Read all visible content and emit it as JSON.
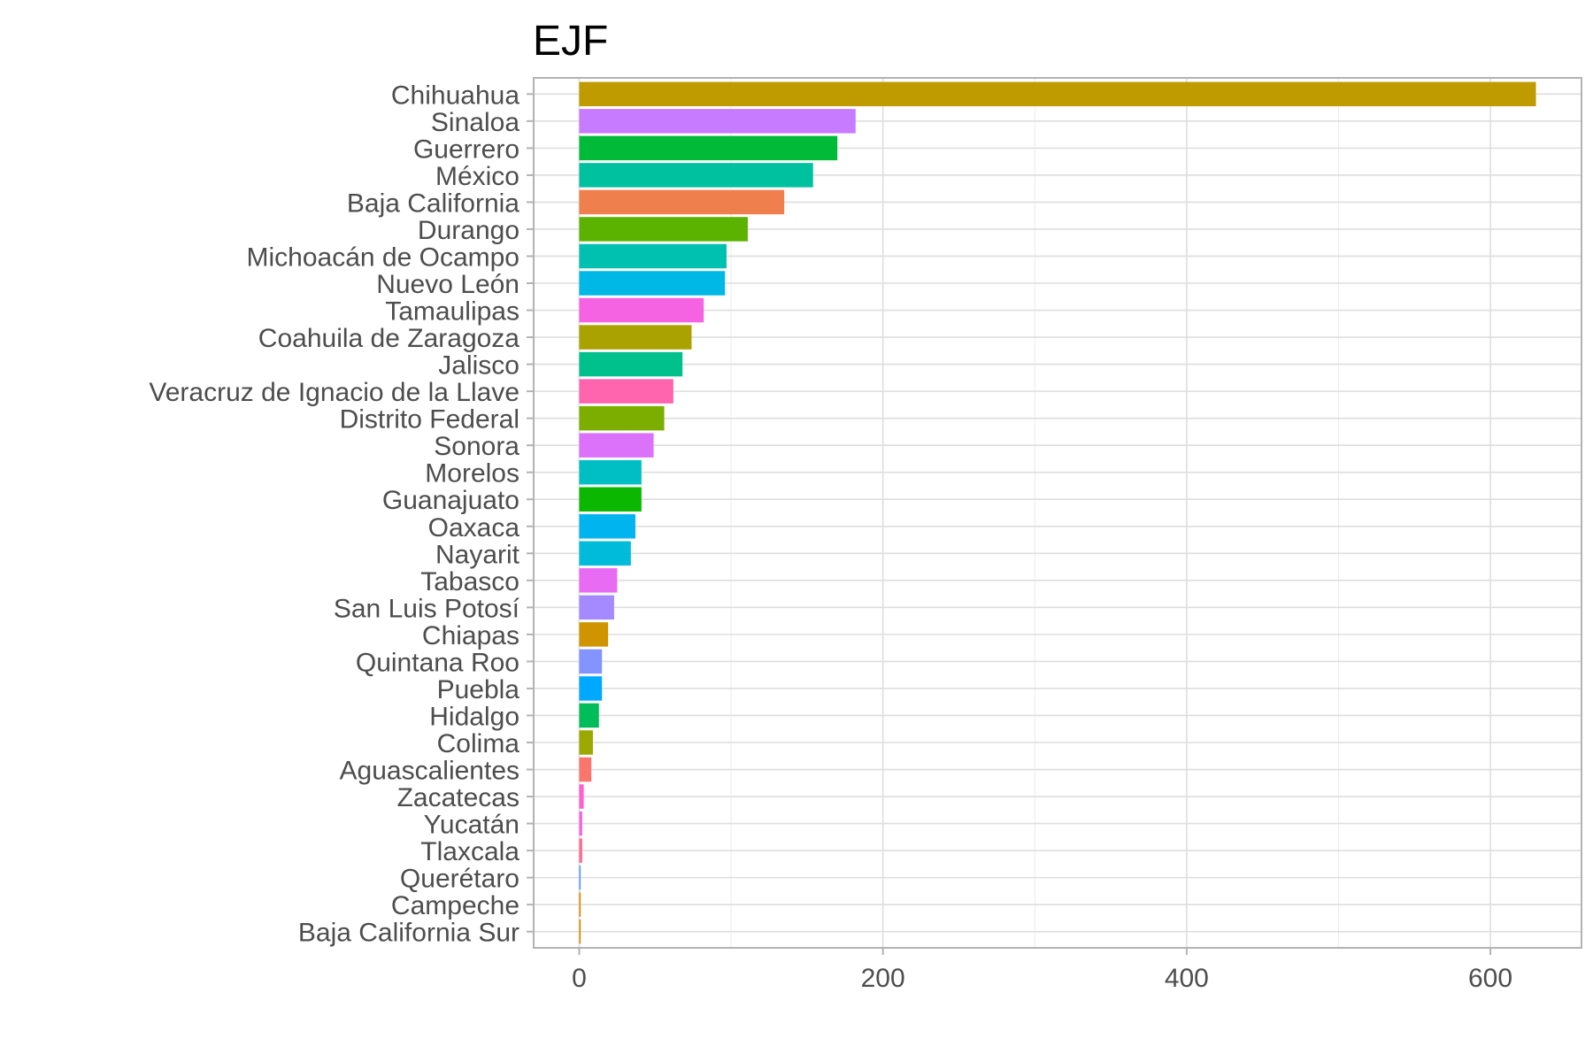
{
  "chart_data": {
    "type": "bar",
    "orientation": "horizontal",
    "title": "EJF",
    "xlabel": "",
    "ylabel": "",
    "xlim": [
      -30,
      660
    ],
    "xticks": [
      0,
      200,
      400,
      600
    ],
    "grid": true,
    "legend": "none",
    "categories": [
      "Chihuahua",
      "Sinaloa",
      "Guerrero",
      "México",
      "Baja California",
      "Durango",
      "Michoacán de Ocampo",
      "Nuevo León",
      "Tamaulipas",
      "Coahuila de Zaragoza",
      "Jalisco",
      "Veracruz de Ignacio de la Llave",
      "Distrito Federal",
      "Sonora",
      "Morelos",
      "Guanajuato",
      "Oaxaca",
      "Nayarit",
      "Tabasco",
      "San Luis Potosí",
      "Chiapas",
      "Quintana Roo",
      "Puebla",
      "Hidalgo",
      "Colima",
      "Aguascalientes",
      "Zacatecas",
      "Yucatán",
      "Tlaxcala",
      "Querétaro",
      "Campeche",
      "Baja California Sur"
    ],
    "values": [
      630,
      182,
      170,
      154,
      135,
      111,
      97,
      96,
      82,
      74,
      68,
      62,
      56,
      49,
      41,
      41,
      37,
      34,
      25,
      23,
      19,
      15,
      15,
      13,
      9,
      8,
      3,
      2,
      2,
      1,
      1,
      1
    ],
    "colors": [
      "#C09B00",
      "#C77CFF",
      "#00BA38",
      "#00C19F",
      "#F07F4E",
      "#5BB300",
      "#00C0AF",
      "#00B8E5",
      "#F663E2",
      "#AAA200",
      "#00C08B",
      "#FF65AE",
      "#7CAE00",
      "#DC71FA",
      "#00BFC4",
      "#0CB702",
      "#00B4F0",
      "#00BBDA",
      "#E76BF3",
      "#A58AFF",
      "#D09400",
      "#8494FF",
      "#00A9FF",
      "#00BC59",
      "#9AA800",
      "#F8766D",
      "#FD61D1",
      "#F564E3",
      "#FF6C91",
      "#619CFF",
      "#E18A00",
      "#D89000"
    ]
  }
}
